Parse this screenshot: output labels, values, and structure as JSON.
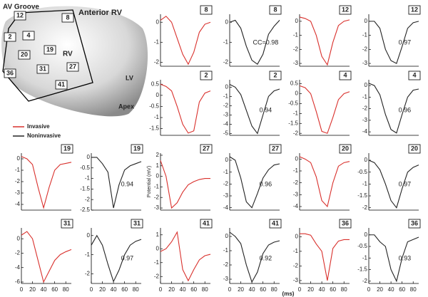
{
  "diagram": {
    "labels": [
      "AV Groove",
      "Anterior RV",
      "RV",
      "LV",
      "Apex"
    ],
    "sites": [
      "12",
      "8",
      "2",
      "4",
      "20",
      "19",
      "31",
      "27",
      "36",
      "41"
    ],
    "legend": [
      {
        "name": "Invasive",
        "color": "#d9302c"
      },
      {
        "name": "Noninvasive",
        "color": "#222222"
      }
    ]
  },
  "chart_data": [
    {
      "type": "line",
      "label": "8",
      "color": "#d9302c",
      "x": [
        0,
        10,
        20,
        30,
        40,
        50,
        60,
        70,
        80,
        90
      ],
      "values": [
        0.1,
        0.3,
        0,
        -0.8,
        -1.6,
        -2.1,
        -1.5,
        -0.5,
        -0.1,
        0
      ],
      "xlim": [
        0,
        90
      ],
      "ylim": [
        -2.2,
        0.4
      ],
      "yticks": [
        0,
        -1,
        -2
      ]
    },
    {
      "type": "line",
      "label": "8",
      "color": "#222222",
      "annotation": "CC=0.98",
      "x": [
        0,
        10,
        20,
        30,
        40,
        50,
        60,
        70,
        80,
        90
      ],
      "values": [
        0,
        0.1,
        -0.3,
        -1.2,
        -1.9,
        -2.1,
        -1.6,
        -0.6,
        -0.2,
        0.1
      ],
      "xlim": [
        0,
        90
      ],
      "ylim": [
        -2.2,
        0.4
      ],
      "yticks": [
        0,
        -1,
        -2
      ]
    },
    {
      "type": "line",
      "label": "12",
      "color": "#d9302c",
      "x": [
        0,
        10,
        20,
        30,
        40,
        50,
        60,
        70,
        80,
        90
      ],
      "values": [
        0.3,
        0.2,
        0,
        -1,
        -2.5,
        -3.1,
        -1.5,
        -0.3,
        0,
        0.1
      ],
      "xlim": [
        0,
        90
      ],
      "ylim": [
        -3.2,
        0.5
      ],
      "yticks": [
        0,
        -1,
        -2,
        -3
      ]
    },
    {
      "type": "line",
      "label": "12",
      "color": "#222222",
      "annotation": "0.97",
      "x": [
        0,
        10,
        20,
        30,
        40,
        50,
        60,
        70,
        80,
        90
      ],
      "values": [
        0,
        0,
        -0.5,
        -2,
        -2.8,
        -3,
        -1.8,
        -0.5,
        -0.1,
        0
      ],
      "xlim": [
        0,
        90
      ],
      "ylim": [
        -3.2,
        0.5
      ],
      "yticks": [
        0,
        -1,
        -2,
        -3
      ]
    },
    {
      "type": "line",
      "label": "2",
      "color": "#d9302c",
      "x": [
        0,
        10,
        20,
        30,
        40,
        50,
        60,
        70,
        80,
        90
      ],
      "values": [
        0.5,
        0.4,
        0.2,
        -0.5,
        -1.3,
        -1.7,
        -1.6,
        -0.3,
        0.1,
        0.2
      ],
      "xlim": [
        0,
        90
      ],
      "ylim": [
        -1.8,
        0.7
      ],
      "yticks": [
        0.5,
        0,
        -0.5,
        -1,
        -1.5
      ]
    },
    {
      "type": "line",
      "label": "2",
      "color": "#222222",
      "annotation": "0.94",
      "x": [
        0,
        10,
        20,
        30,
        40,
        50,
        60,
        70,
        80,
        90
      ],
      "values": [
        0.3,
        0,
        -0.8,
        -2.5,
        -4.2,
        -5,
        -3,
        -1,
        -0.4,
        -0.2
      ],
      "xlim": [
        0,
        90
      ],
      "ylim": [
        -5.2,
        0.8
      ],
      "yticks": [
        0,
        -1,
        -2,
        -3,
        -4,
        -5
      ]
    },
    {
      "type": "line",
      "label": "4",
      "color": "#d9302c",
      "x": [
        0,
        10,
        20,
        30,
        40,
        50,
        60,
        70,
        80,
        90
      ],
      "values": [
        0.4,
        0.3,
        0,
        -0.9,
        -1.9,
        -2,
        -1.2,
        -0.3,
        0,
        0.1
      ],
      "xlim": [
        0,
        90
      ],
      "ylim": [
        -2.1,
        0.7
      ],
      "yticks": [
        0.5,
        0,
        -0.5,
        -1,
        -1.5,
        -2
      ]
    },
    {
      "type": "line",
      "label": "4",
      "color": "#222222",
      "annotation": "0.96",
      "x": [
        0,
        10,
        20,
        30,
        40,
        50,
        60,
        70,
        80,
        90
      ],
      "values": [
        0.2,
        0,
        -0.8,
        -2.5,
        -3.8,
        -4.1,
        -2.5,
        -1,
        -0.4,
        -0.3
      ],
      "xlim": [
        0,
        90
      ],
      "ylim": [
        -4.3,
        0.5
      ],
      "yticks": [
        0,
        -1,
        -2,
        -3,
        -4
      ]
    },
    {
      "type": "line",
      "label": "19",
      "color": "#d9302c",
      "x": [
        0,
        10,
        20,
        30,
        40,
        50,
        60,
        70,
        80,
        90
      ],
      "values": [
        0.2,
        0,
        -0.5,
        -2.5,
        -4.3,
        -2.5,
        -1,
        -0.5,
        -0.4,
        -0.3
      ],
      "xlim": [
        0,
        90
      ],
      "ylim": [
        -4.5,
        0.5
      ],
      "yticks": [
        0,
        -1,
        -2,
        -3,
        -4
      ]
    },
    {
      "type": "line",
      "label": "19",
      "color": "#222222",
      "annotation": "0.94",
      "x": [
        0,
        10,
        20,
        30,
        40,
        50,
        60,
        70,
        80,
        90
      ],
      "values": [
        0,
        0,
        -0.3,
        -0.7,
        -2.4,
        -1.3,
        -0.6,
        -0.4,
        -0.3,
        -0.2
      ],
      "xlim": [
        0,
        90
      ],
      "ylim": [
        -2.5,
        0.2
      ],
      "yticks": [
        0,
        -0.5,
        -1,
        -1.5,
        -2,
        -2.5
      ]
    },
    {
      "type": "line",
      "label": "27",
      "color": "#d9302c",
      "ylabel": "Potential (mV)",
      "x": [
        0,
        10,
        20,
        30,
        40,
        50,
        60,
        70,
        80,
        90
      ],
      "values": [
        1.5,
        0,
        -3,
        -2.5,
        -1.5,
        -0.8,
        -0.5,
        -0.3,
        -0.2,
        -0.2
      ],
      "xlim": [
        0,
        90
      ],
      "ylim": [
        -3.2,
        2.2
      ],
      "yticks": [
        2,
        1,
        0,
        -1,
        -2,
        -3
      ]
    },
    {
      "type": "line",
      "label": "27",
      "color": "#222222",
      "annotation": "0.96",
      "x": [
        0,
        10,
        20,
        30,
        40,
        50,
        60,
        70,
        80,
        90
      ],
      "values": [
        0.3,
        0,
        -1.5,
        -3.5,
        -4,
        -2.8,
        -1.5,
        -0.8,
        -0.4,
        -0.3
      ],
      "xlim": [
        0,
        90
      ],
      "ylim": [
        -4.2,
        0.6
      ],
      "yticks": [
        0,
        -1,
        -2,
        -3,
        -4
      ]
    },
    {
      "type": "line",
      "label": "20",
      "color": "#d9302c",
      "x": [
        0,
        10,
        20,
        30,
        40,
        50,
        60,
        70,
        80,
        90
      ],
      "values": [
        0.2,
        0,
        -0.3,
        -1.5,
        -3.5,
        -4,
        -2,
        -0.6,
        -0.3,
        -0.2
      ],
      "xlim": [
        0,
        90
      ],
      "ylim": [
        -4.3,
        0.5
      ],
      "yticks": [
        0,
        -1,
        -2,
        -3,
        -4
      ]
    },
    {
      "type": "line",
      "label": "20",
      "color": "#222222",
      "annotation": "0.97",
      "x": [
        0,
        10,
        20,
        30,
        40,
        50,
        60,
        70,
        80,
        90
      ],
      "values": [
        0,
        -0.1,
        -0.4,
        -1,
        -1.7,
        -2,
        -1.2,
        -0.5,
        -0.3,
        -0.2
      ],
      "xlim": [
        0,
        90
      ],
      "ylim": [
        -2.1,
        0.3
      ],
      "yticks": [
        0,
        -0.5,
        -1,
        -1.5,
        -2
      ]
    },
    {
      "type": "line",
      "label": "31",
      "color": "#d9302c",
      "x": [
        0,
        10,
        20,
        30,
        40,
        50,
        60,
        70,
        80,
        90
      ],
      "values": [
        0.5,
        1,
        0,
        -3,
        -6,
        -4.5,
        -3,
        -2.2,
        -1.8,
        -1.5
      ],
      "xlim": [
        0,
        90
      ],
      "ylim": [
        -6.2,
        1.5
      ],
      "yticks": [
        0,
        -2,
        -4,
        -6
      ],
      "xticks": [
        0,
        20,
        40,
        60,
        80
      ]
    },
    {
      "type": "line",
      "label": "31",
      "color": "#222222",
      "annotation": "0.97",
      "x": [
        0,
        10,
        20,
        30,
        40,
        50,
        60,
        70,
        80,
        90
      ],
      "values": [
        -0.5,
        0,
        -0.5,
        -1.5,
        -2.4,
        -1.8,
        -1,
        -0.5,
        -0.3,
        -0.2
      ],
      "xlim": [
        0,
        90
      ],
      "ylim": [
        -2.5,
        0.4
      ],
      "yticks": [
        0,
        -1,
        -2
      ],
      "xticks": [
        0,
        20,
        40,
        60,
        80
      ]
    },
    {
      "type": "line",
      "label": "41",
      "color": "#d9302c",
      "x": [
        0,
        10,
        20,
        30,
        40,
        50,
        60,
        70,
        80,
        90
      ],
      "values": [
        -0.2,
        0,
        0.5,
        1.2,
        -1.5,
        -2.3,
        -1.5,
        -0.8,
        -0.5,
        -0.4
      ],
      "xlim": [
        0,
        90
      ],
      "ylim": [
        -2.5,
        1.5
      ],
      "yticks": [
        1,
        0,
        -1,
        -2
      ],
      "xticks": [
        0,
        20,
        40,
        60,
        80
      ]
    },
    {
      "type": "line",
      "label": "41",
      "color": "#222222",
      "annotation": "0.92",
      "xlabel": "(ms)",
      "x": [
        0,
        10,
        20,
        30,
        40,
        50,
        60,
        70,
        80,
        90
      ],
      "values": [
        0.3,
        0,
        -0.5,
        -2,
        -3.2,
        -2.5,
        -1.2,
        -0.6,
        -0.4,
        -0.3
      ],
      "xlim": [
        0,
        90
      ],
      "ylim": [
        -3.3,
        0.6
      ],
      "yticks": [
        0,
        -1,
        -2,
        -3
      ],
      "xticks": [
        0,
        20,
        40,
        60,
        80
      ]
    },
    {
      "type": "line",
      "label": "36",
      "color": "#d9302c",
      "x": [
        0,
        10,
        20,
        30,
        40,
        50,
        60,
        70,
        80,
        90
      ],
      "values": [
        0.2,
        0.2,
        0.1,
        -0.5,
        -1,
        -3,
        -0.8,
        -0.3,
        -0.2,
        -0.2
      ],
      "xlim": [
        0,
        90
      ],
      "ylim": [
        -3.2,
        0.6
      ],
      "yticks": [
        0,
        -1,
        -2,
        -3
      ],
      "xticks": [
        0,
        20,
        40,
        60,
        80
      ]
    },
    {
      "type": "line",
      "label": "36",
      "color": "#222222",
      "annotation": "0.93",
      "x": [
        0,
        10,
        20,
        30,
        40,
        50,
        60,
        70,
        80,
        90
      ],
      "values": [
        0,
        0,
        -0.3,
        -0.5,
        -1.5,
        -2,
        -1,
        -0.3,
        -0.2,
        -0.1
      ],
      "xlim": [
        0,
        90
      ],
      "ylim": [
        -2.1,
        0.3
      ],
      "yticks": [
        0,
        -0.5,
        -1,
        -1.5,
        -2
      ],
      "xticks": [
        0,
        20,
        40,
        60,
        80
      ]
    }
  ]
}
